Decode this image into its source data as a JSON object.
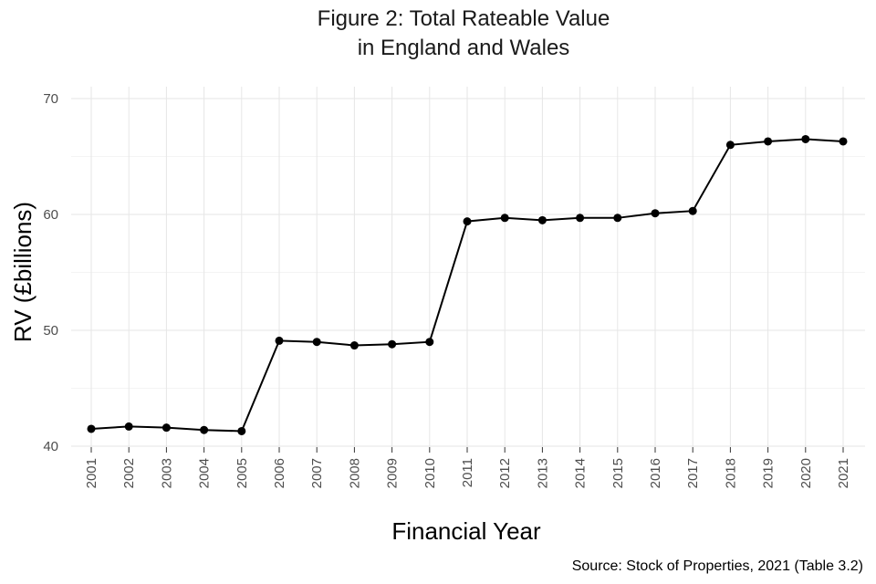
{
  "chart_data": {
    "type": "line",
    "title_lines": [
      "Figure 2: Total Rateable Value",
      "in England and Wales"
    ],
    "xlabel": "Financial Year",
    "ylabel": "RV (£billions)",
    "caption": "Source: Stock of Properties, 2021 (Table 3.2)",
    "ylim": [
      40,
      70
    ],
    "y_ticks": [
      40,
      50,
      60,
      70
    ],
    "grid": true,
    "legend": false,
    "x": [
      "2001",
      "2002",
      "2003",
      "2004",
      "2005",
      "2006",
      "2007",
      "2008",
      "2009",
      "2010",
      "2011",
      "2012",
      "2013",
      "2014",
      "2015",
      "2016",
      "2017",
      "2018",
      "2019",
      "2020",
      "2021"
    ],
    "series": [
      {
        "values": [
          41.5,
          41.7,
          41.6,
          41.4,
          41.3,
          49.1,
          49.0,
          48.7,
          48.8,
          49.0,
          59.4,
          59.7,
          59.5,
          59.7,
          59.7,
          60.1,
          60.3,
          66.0,
          66.3,
          66.5,
          66.3
        ],
        "color": "#000000"
      }
    ]
  }
}
